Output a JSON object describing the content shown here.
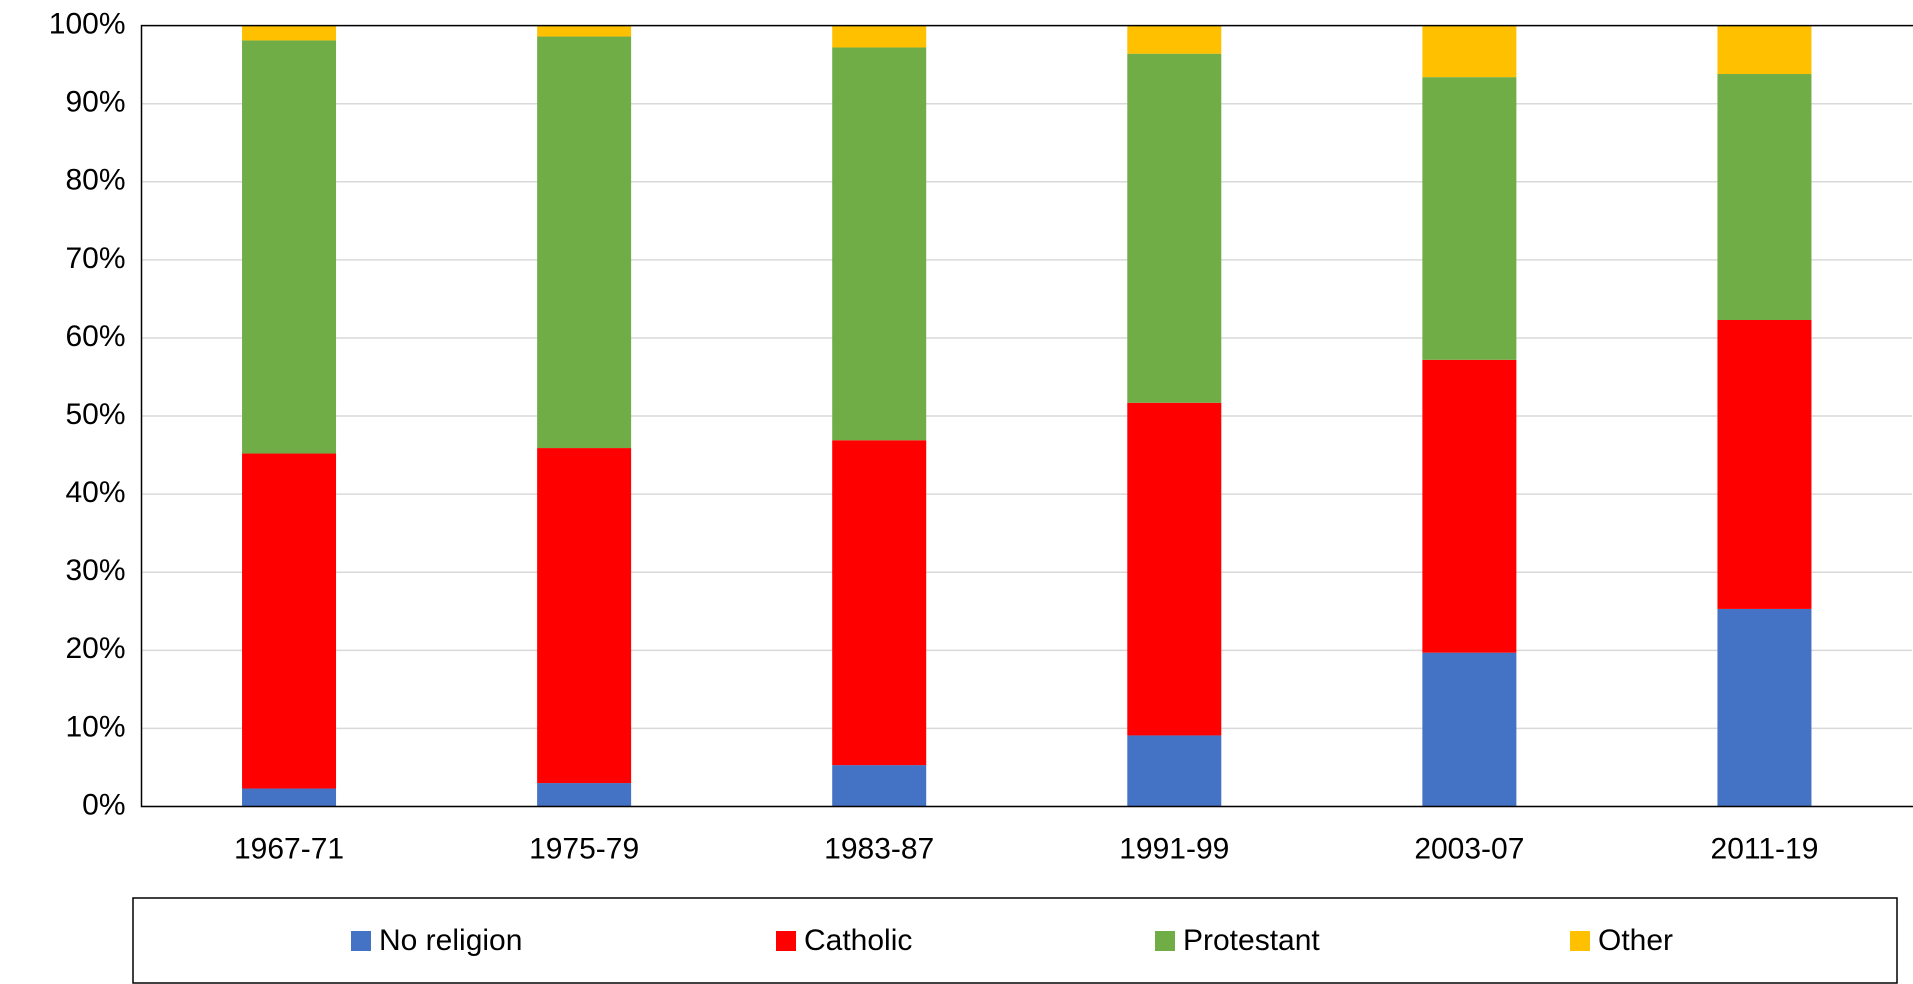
{
  "chart_data": {
    "type": "stacked_bar",
    "categories": [
      "1967-71",
      "1975-79",
      "1983-87",
      "1991-99",
      "2003-07",
      "2011-19"
    ],
    "series": [
      {
        "name": "No religion",
        "color": "#4472c4",
        "values": [
          2.3,
          3.0,
          5.3,
          9.1,
          19.7,
          25.3
        ]
      },
      {
        "name": "Catholic",
        "color": "#ff0000",
        "values": [
          42.9,
          42.9,
          41.6,
          42.6,
          37.5,
          37.0
        ]
      },
      {
        "name": "Protestant",
        "color": "#70ad47",
        "values": [
          52.9,
          52.7,
          50.3,
          44.7,
          36.2,
          31.5
        ]
      },
      {
        "name": "Other",
        "color": "#ffc000",
        "values": [
          1.9,
          1.4,
          2.8,
          3.6,
          6.6,
          6.2
        ]
      }
    ],
    "ylim": [
      0,
      100
    ],
    "yticks": [
      {
        "value": 0,
        "label": "0%"
      },
      {
        "value": 10,
        "label": "10%"
      },
      {
        "value": 20,
        "label": "20%"
      },
      {
        "value": 30,
        "label": "30%"
      },
      {
        "value": 40,
        "label": "40%"
      },
      {
        "value": 50,
        "label": "50%"
      },
      {
        "value": 60,
        "label": "60%"
      },
      {
        "value": 70,
        "label": "70%"
      },
      {
        "value": 80,
        "label": "80%"
      },
      {
        "value": 90,
        "label": "90%"
      },
      {
        "value": 100,
        "label": "100%"
      }
    ],
    "grid": true,
    "legend": "bottom"
  }
}
